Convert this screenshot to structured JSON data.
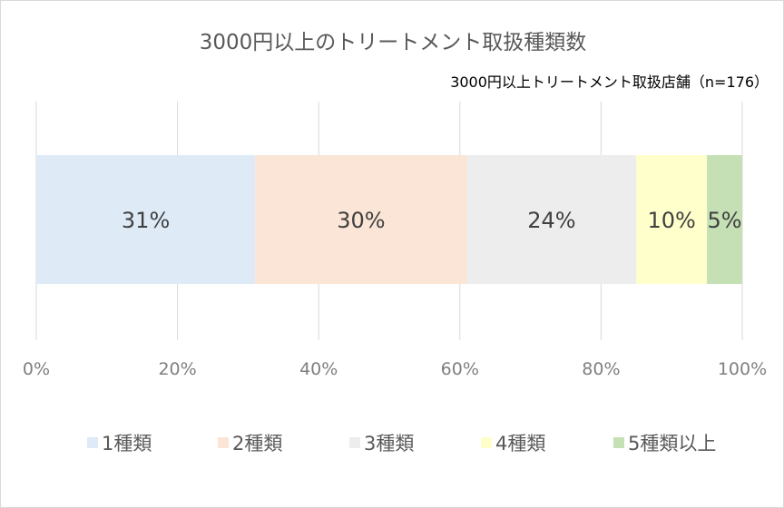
{
  "chart_data": {
    "type": "bar",
    "orientation": "horizontal",
    "stacked": "100%",
    "title": "3000円以上のトリートメント取扱種類数",
    "subtitle": "3000円以上トリートメント取扱店舗（n=176）",
    "categories": [
      ""
    ],
    "series": [
      {
        "name": "1種類",
        "values": [
          31
        ],
        "label": "31%",
        "color": "#deebf7"
      },
      {
        "name": "2種類",
        "values": [
          30
        ],
        "label": "30%",
        "color": "#fbe5d6"
      },
      {
        "name": "3種類",
        "values": [
          24
        ],
        "label": "24%",
        "color": "#ededed"
      },
      {
        "name": "4種類",
        "values": [
          10
        ],
        "label": "10%",
        "color": "#ffffcc"
      },
      {
        "name": "5種類以上",
        "values": [
          5
        ],
        "label": "5%",
        "color": "#c5e0b4"
      }
    ],
    "xlim": [
      0,
      100
    ],
    "xticks": [
      "0%",
      "20%",
      "40%",
      "60%",
      "80%",
      "100%"
    ],
    "grid": true,
    "legend_position": "bottom"
  }
}
